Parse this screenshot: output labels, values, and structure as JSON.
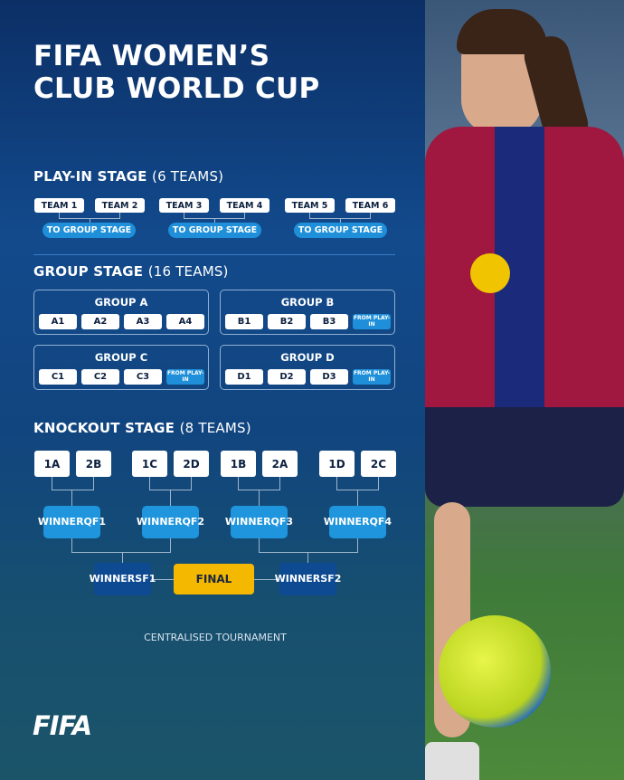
{
  "title": {
    "line1": "FIFA WOMEN’S",
    "line2": "CLUB WORLD CUP"
  },
  "playin": {
    "heading": "PLAY-IN STAGE",
    "count": "(6 TEAMS)",
    "teams": [
      "TEAM 1",
      "TEAM 2",
      "TEAM 3",
      "TEAM 4",
      "TEAM 5",
      "TEAM 6"
    ],
    "to_group": "TO GROUP STAGE"
  },
  "group_stage": {
    "heading": "GROUP STAGE",
    "count": "(16 TEAMS)",
    "from_playin": "FROM PLAY-IN",
    "groups": [
      {
        "name": "GROUP A",
        "teams": [
          "A1",
          "A2",
          "A3",
          "A4"
        ]
      },
      {
        "name": "GROUP B",
        "teams": [
          "B1",
          "B2",
          "B3"
        ]
      },
      {
        "name": "GROUP C",
        "teams": [
          "C1",
          "C2",
          "C3"
        ]
      },
      {
        "name": "GROUP D",
        "teams": [
          "D1",
          "D2",
          "D3"
        ]
      }
    ]
  },
  "knockout": {
    "heading": "KNOCKOUT STAGE",
    "count": "(8 TEAMS)",
    "qf_pairs": [
      [
        "1A",
        "2B"
      ],
      [
        "1C",
        "2D"
      ],
      [
        "1B",
        "2A"
      ],
      [
        "1D",
        "2C"
      ]
    ],
    "qf_winners": [
      {
        "l1": "WINNER",
        "l2": "QF1"
      },
      {
        "l1": "WINNER",
        "l2": "QF2"
      },
      {
        "l1": "WINNER",
        "l2": "QF3"
      },
      {
        "l1": "WINNER",
        "l2": "QF4"
      }
    ],
    "sf_winners": [
      {
        "l1": "WINNER",
        "l2": "SF1"
      },
      {
        "l1": "WINNER",
        "l2": "SF2"
      }
    ],
    "final": "FINAL"
  },
  "footer_note": "CENTRALISED TOURNAMENT",
  "logo": "FIFA",
  "colors": {
    "background": "#124a8c",
    "pill": "#1e8fd8",
    "dark_box": "#0e4a92",
    "final": "#f5b800"
  }
}
